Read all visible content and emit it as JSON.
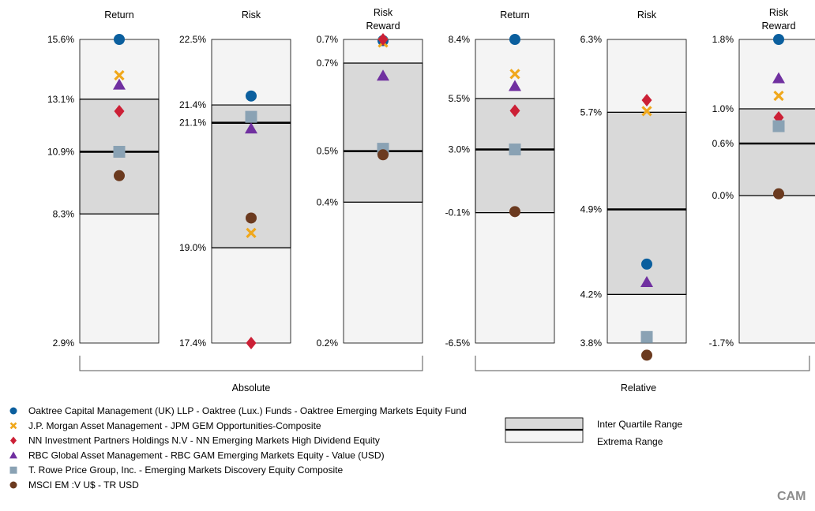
{
  "chart_data": {
    "type": "range-box",
    "colors": {
      "extrema_fill": "#f4f4f4",
      "iqr_fill": "#d9d9d9",
      "outline": "#000000"
    },
    "series": [
      {
        "name": "Oaktree Capital Management (UK) LLP - Oaktree (Lux.) Funds - Oaktree Emerging Markets Equity Fund",
        "marker": "circle",
        "color": "#0b5f9e"
      },
      {
        "name": "J.P. Morgan Asset Management - JPM GEM Opportunities-Composite",
        "marker": "x",
        "color": "#f0a81c"
      },
      {
        "name": "NN Investment Partners Holdings N.V - NN Emerging Markets High Dividend Equity",
        "marker": "diamond",
        "color": "#cc2036"
      },
      {
        "name": "RBC Global Asset Management - RBC GAM Emerging Markets Equity - Value (USD)",
        "marker": "triangle",
        "color": "#7030a0"
      },
      {
        "name": "T. Rowe Price Group, Inc. - Emerging Markets Discovery Equity Composite",
        "marker": "square",
        "color": "#8aa2b4"
      },
      {
        "name": "MSCI EM :V U$ - TR USD",
        "marker": "circle",
        "color": "#6b3a1f"
      }
    ],
    "panels": [
      {
        "title": [
          "Return"
        ],
        "group": "Absolute",
        "min": 2.9,
        "max": 15.6,
        "box_ticks": {
          "max": "15.6%",
          "q3": "13.1%",
          "median": "10.9%",
          "q1": "8.3%",
          "min": "2.9%"
        },
        "q3": 13.1,
        "median": 10.9,
        "q1": 8.3,
        "values": [
          15.6,
          14.1,
          12.6,
          13.7,
          10.9,
          9.9
        ]
      },
      {
        "title": [
          "Risk"
        ],
        "group": "Absolute",
        "min": 17.4,
        "max": 22.5,
        "box_ticks": {
          "max": "22.5%",
          "q3": "21.4%",
          "median": "21.1%",
          "q1": "19.0%",
          "min": "17.4%"
        },
        "q3": 21.4,
        "median": 21.1,
        "q1": 19.0,
        "values": [
          21.55,
          19.25,
          17.4,
          21.0,
          21.2,
          19.5
        ]
      },
      {
        "title": [
          "Risk",
          "Reward"
        ],
        "group": "Absolute",
        "min": 0.2,
        "max": 0.7,
        "box_ticks": {
          "max": "0.7%",
          "q3": "0.7%",
          "median": "0.5%",
          "q1": "0.4%",
          "min": "0.2%"
        },
        "q3": 0.661,
        "median": 0.516,
        "q1": 0.432,
        "values": [
          0.698,
          0.695,
          0.7,
          0.64,
          0.52,
          0.51
        ]
      },
      {
        "title": [
          "Return"
        ],
        "group": "Relative",
        "min": -6.5,
        "max": 8.4,
        "box_ticks": {
          "max": "8.4%",
          "q3": "5.5%",
          "median": "3.0%",
          "q1": "-0.1%",
          "min": "-6.5%"
        },
        "q3": 5.5,
        "median": 3.0,
        "q1": -0.1,
        "values": [
          8.4,
          6.7,
          4.9,
          6.1,
          3.0,
          -0.05
        ]
      },
      {
        "title": [
          "Risk"
        ],
        "group": "Relative",
        "min": 3.8,
        "max": 6.3,
        "box_ticks": {
          "max": "6.3%",
          "q3": "5.7%",
          "median": "4.9%",
          "q1": "4.2%",
          "min": "3.8%"
        },
        "q3": 5.7,
        "median": 4.9,
        "q1": 4.2,
        "values": [
          4.45,
          5.71,
          5.8,
          4.3,
          3.85,
          3.7
        ]
      },
      {
        "title": [
          "Risk",
          "Reward"
        ],
        "group": "Relative",
        "min": -1.7,
        "max": 1.8,
        "box_ticks": {
          "max": "1.8%",
          "q3": "1.0%",
          "median": "0.6%",
          "q1": "0.0%",
          "min": "-1.7%"
        },
        "q3": 1.0,
        "median": 0.6,
        "q1": 0.0,
        "values": [
          1.8,
          1.15,
          0.9,
          1.35,
          0.8,
          0.02
        ]
      }
    ],
    "groups": [
      "Absolute",
      "Relative"
    ],
    "range_legend": {
      "iqr": "Inter Quartile Range",
      "extrema": "Extrema Range"
    }
  },
  "watermark": "CAM"
}
